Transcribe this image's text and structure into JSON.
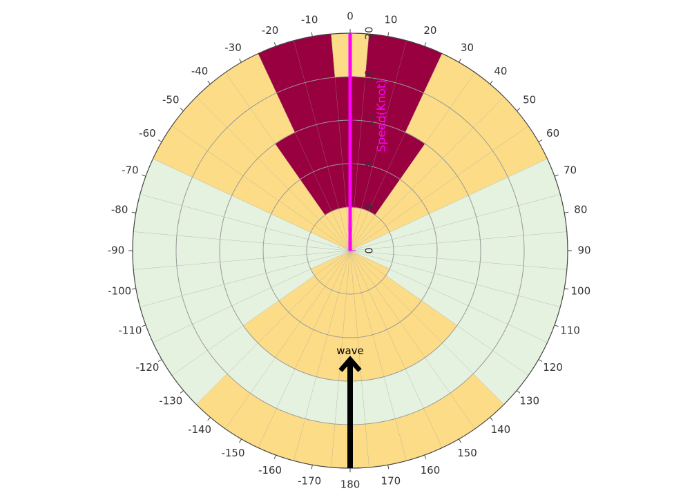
{
  "chart_data": {
    "type": "polar-heatmap",
    "directions": [
      -170,
      -160,
      -150,
      -140,
      -130,
      -120,
      -110,
      -100,
      -90,
      -80,
      -70,
      -60,
      -50,
      -40,
      -30,
      -20,
      -10,
      0,
      10,
      20,
      30,
      40,
      50,
      60,
      70,
      80,
      90,
      100,
      110,
      120,
      130,
      140,
      150,
      160,
      170,
      180
    ],
    "rlim": [
      0,
      20
    ],
    "rticks": [
      0,
      4,
      8,
      12,
      16,
      20
    ],
    "radial_axis_title": "Speed(Knot)",
    "radial_axis_color": "#ff00ff",
    "level_colors": [
      "#e4f2df",
      "#fcdc87",
      "#99003f"
    ],
    "levels": [
      [
        1,
        1,
        1,
        1,
        1,
        1,
        0,
        0,
        0,
        0,
        0,
        1,
        1,
        1,
        1,
        1,
        1,
        1,
        1,
        1,
        1,
        1,
        1,
        1,
        0,
        0,
        0,
        0,
        0,
        1,
        1,
        1,
        1,
        1,
        1,
        1
      ],
      [
        1,
        1,
        1,
        1,
        1,
        0,
        0,
        0,
        0,
        0,
        0,
        1,
        1,
        1,
        2,
        2,
        2,
        2,
        2,
        2,
        2,
        1,
        1,
        1,
        0,
        0,
        0,
        0,
        0,
        0,
        1,
        1,
        1,
        1,
        1,
        1
      ],
      [
        1,
        1,
        1,
        1,
        1,
        0,
        0,
        0,
        0,
        0,
        0,
        1,
        1,
        1,
        2,
        2,
        2,
        2,
        2,
        2,
        2,
        1,
        1,
        1,
        0,
        0,
        0,
        0,
        0,
        0,
        1,
        1,
        1,
        1,
        1,
        1
      ],
      [
        0,
        0,
        0,
        0,
        0,
        0,
        0,
        0,
        0,
        0,
        0,
        1,
        1,
        1,
        1,
        2,
        2,
        2,
        2,
        2,
        1,
        1,
        1,
        1,
        0,
        0,
        0,
        0,
        0,
        0,
        0,
        0,
        0,
        0,
        0,
        0
      ],
      [
        1,
        1,
        1,
        1,
        0,
        0,
        0,
        0,
        0,
        0,
        0,
        1,
        1,
        1,
        1,
        2,
        2,
        1,
        2,
        2,
        1,
        1,
        1,
        1,
        0,
        0,
        0,
        0,
        0,
        0,
        0,
        1,
        1,
        1,
        1,
        1
      ]
    ],
    "annotation": {
      "text": "wave",
      "direction": 180
    }
  }
}
